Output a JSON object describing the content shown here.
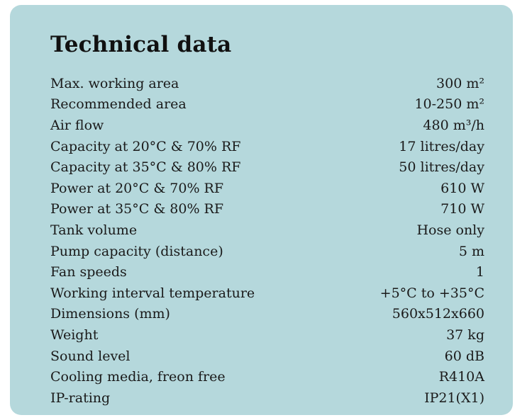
{
  "title": "Technical data",
  "rows": [
    {
      "label": "Max. working area",
      "value": "300 m²"
    },
    {
      "label": "Recommended area",
      "value": "10-250 m²"
    },
    {
      "label": "Air flow",
      "value": "480 m³/h"
    },
    {
      "label": "Capacity at 20°C & 70% RF",
      "value": "17 litres/day"
    },
    {
      "label": "Capacity at 35°C & 80% RF",
      "value": "50 litres/day"
    },
    {
      "label": "Power at 20°C & 70% RF",
      "value": "610 W"
    },
    {
      "label": "Power at 35°C & 80% RF",
      "value": "710 W"
    },
    {
      "label": "Tank volume",
      "value": "Hose only"
    },
    {
      "label": "Pump capacity (distance)",
      "value": "5 m"
    },
    {
      "label": "Fan speeds",
      "value": "1"
    },
    {
      "label": "Working interval temperature",
      "value": "+5°C to +35°C"
    },
    {
      "label": "Dimensions (mm)",
      "value": "560x512x660"
    },
    {
      "label": "Weight",
      "value": "37 kg"
    },
    {
      "label": "Sound level",
      "value": "60 dB"
    },
    {
      "label": "Cooling media, freon free",
      "value": "R410A"
    },
    {
      "label": "IP-rating",
      "value": "IP21(X1)"
    }
  ],
  "colors": {
    "card_background": "#b5d8dc",
    "text": "#1a1a1a"
  }
}
